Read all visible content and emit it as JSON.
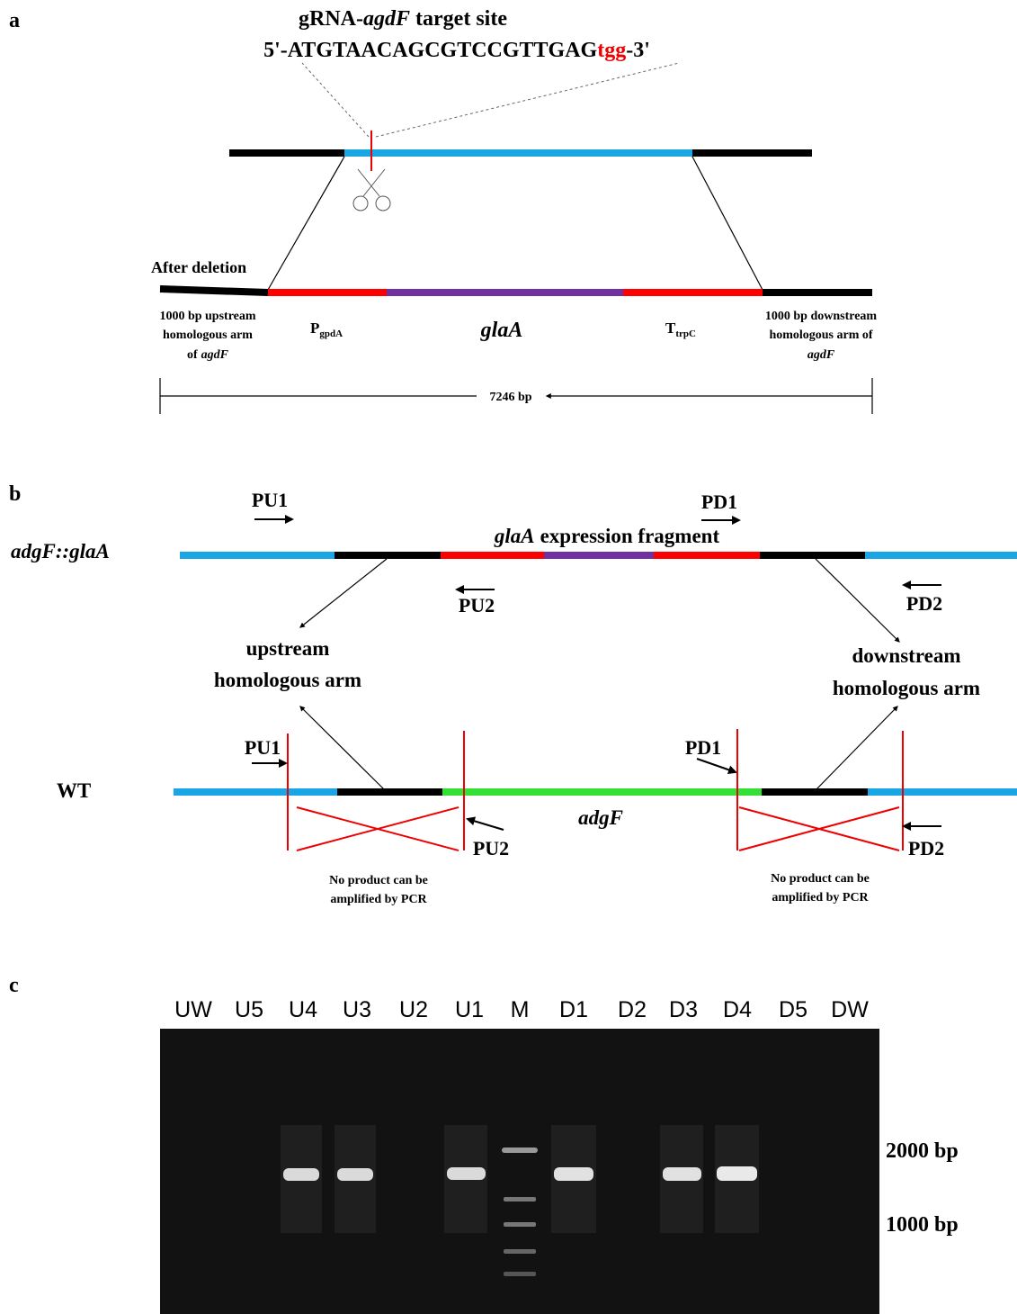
{
  "panel_a": {
    "label": "a",
    "target_title": {
      "prefix": "gRNA-",
      "gene": "agdF",
      "suffix": "target site"
    },
    "sequence": {
      "main": "5'-ATGTAACAGCGTCCGTTGAG",
      "pam": "tgg",
      "end": "-3'"
    },
    "after_deletion": "After deletion",
    "upstream_arm": [
      "1000 bp upstream",
      "homologous arm",
      "of",
      "agdF"
    ],
    "promoter": {
      "main": "P",
      "sub": "gpdA"
    },
    "gene": "glaA",
    "terminator": {
      "main": "T",
      "sub": "trpC"
    },
    "downstream_arm": [
      "1000 bp downstream",
      "homologous arm of",
      "agdF"
    ],
    "length": "7246 bp"
  },
  "panel_b": {
    "label": "b",
    "construct": "adgF::glaA",
    "fragment": {
      "gene": "glaA",
      "text": "expression fragment"
    },
    "primers_top": [
      "PU1",
      "PD1",
      "PU2",
      "PD2"
    ],
    "upstream_label": [
      "upstream",
      "homologous arm"
    ],
    "downstream_label": [
      "downstream",
      "homologous arm"
    ],
    "wt": "WT",
    "wt_gene": "adgF",
    "primers_wt": [
      "PU1",
      "PD1",
      "PU2",
      "PD2"
    ],
    "no_product": [
      "No product can be",
      "amplified by PCR"
    ]
  },
  "panel_c": {
    "label": "c",
    "lanes": [
      "UW",
      "U5",
      "U4",
      "U3",
      "U2",
      "U1",
      "M",
      "D1",
      "D2",
      "D3",
      "D4",
      "D5",
      "DW"
    ],
    "markers": [
      "2000 bp",
      "1000 bp"
    ]
  }
}
